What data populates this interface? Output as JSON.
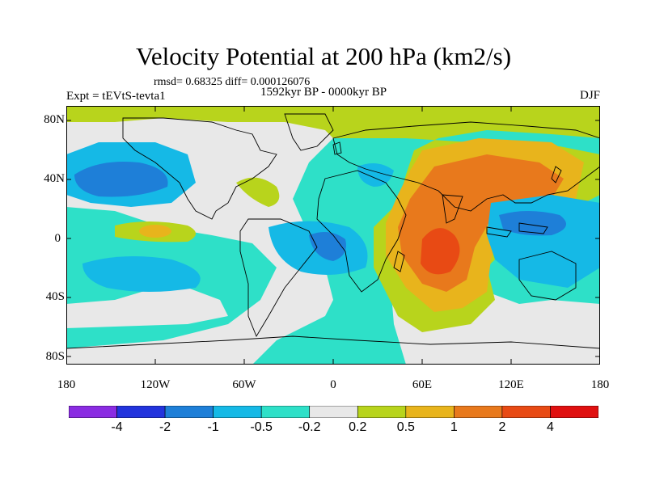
{
  "title": "Velocity Potential at 200 hPa (km2/s)",
  "stats": "rmsd= 0.68325 diff= 0.000126076",
  "experiment": "Expt = tEVtS-tevta1",
  "period": "1592kyr BP - 0000kyr BP",
  "season": "DJF",
  "map": {
    "lat_labels": [
      "80N",
      "40N",
      "0",
      "40S",
      "80S"
    ],
    "lon_labels": [
      "180",
      "120W",
      "60W",
      "0",
      "60E",
      "120E",
      "180"
    ]
  },
  "colorbar": {
    "colors": [
      "#8a2be2",
      "#2233dd",
      "#1e7fd8",
      "#15b9e6",
      "#2ee0c8",
      "#e8e8e8",
      "#b8d41c",
      "#e8b41c",
      "#e8791c",
      "#e84a14",
      "#e01010"
    ],
    "labels": [
      "-4",
      "-2",
      "-1",
      "-0.5",
      "-0.2",
      "0.2",
      "0.5",
      "1",
      "2",
      "4"
    ]
  }
}
